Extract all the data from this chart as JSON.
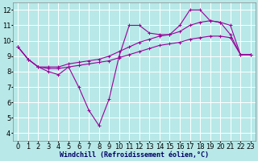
{
  "title": "",
  "xlabel": "Windchill (Refroidissement éolien,°C)",
  "ylabel": "",
  "background_color": "#b8e8e8",
  "grid_color": "#ffffff",
  "line_color": "#990099",
  "ylim": [
    3.5,
    12.5
  ],
  "xlim": [
    -0.5,
    23.5
  ],
  "yticks": [
    4,
    5,
    6,
    7,
    8,
    9,
    10,
    11,
    12
  ],
  "xticks": [
    0,
    1,
    2,
    3,
    4,
    5,
    6,
    7,
    8,
    9,
    10,
    11,
    12,
    13,
    14,
    15,
    16,
    17,
    18,
    19,
    20,
    21,
    22,
    23
  ],
  "series": [
    [
      9.6,
      8.8,
      8.3,
      8.0,
      7.8,
      8.3,
      7.0,
      5.5,
      4.5,
      6.2,
      9.0,
      11.0,
      11.0,
      10.5,
      10.4,
      10.4,
      11.0,
      12.0,
      12.0,
      11.3,
      11.2,
      10.4,
      9.1,
      9.1
    ],
    [
      9.6,
      8.8,
      8.3,
      8.3,
      8.3,
      8.5,
      8.6,
      8.7,
      8.8,
      9.0,
      9.3,
      9.6,
      9.9,
      10.1,
      10.3,
      10.4,
      10.6,
      11.0,
      11.2,
      11.3,
      11.2,
      11.0,
      9.1,
      9.1
    ],
    [
      9.6,
      8.8,
      8.3,
      8.2,
      8.2,
      8.3,
      8.4,
      8.5,
      8.6,
      8.7,
      8.9,
      9.1,
      9.3,
      9.5,
      9.7,
      9.8,
      9.9,
      10.1,
      10.2,
      10.3,
      10.3,
      10.2,
      9.1,
      9.1
    ]
  ],
  "tick_fontsize": 6,
  "xlabel_fontsize": 6,
  "xlabel_color": "#000066",
  "xlabel_fontfamily": "monospace",
  "line_width": 0.8,
  "marker_size": 3
}
